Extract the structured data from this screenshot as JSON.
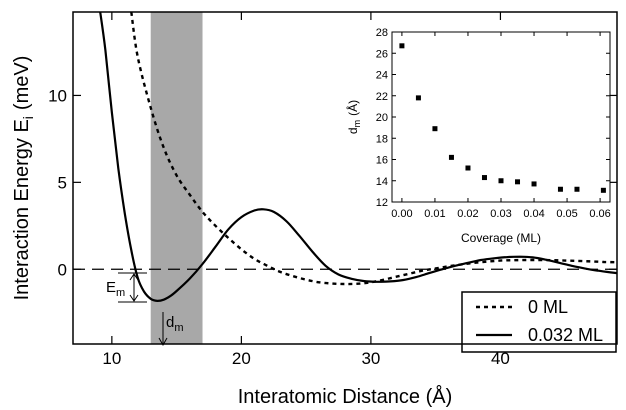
{
  "chart_data": [
    {
      "type": "line",
      "xlabel": "Interatomic Distance (Å)",
      "ylabel": "Interaction Energy E",
      "ylabel_subscript": "i",
      "ylabel_unit": "(meV)",
      "xlim": [
        7,
        49
      ],
      "ylim": [
        -4.3,
        14.8
      ],
      "x_ticks": [
        10,
        20,
        30,
        40
      ],
      "y_ticks": [
        0,
        5,
        10
      ],
      "legend_position": "bottom-right",
      "series": [
        {
          "name": "0 ML",
          "style": "dashed",
          "x": [
            11.5,
            12,
            13,
            14,
            15,
            16,
            17,
            18,
            19,
            20,
            21,
            22,
            23,
            24,
            25,
            26,
            27,
            28,
            29,
            30,
            31,
            32,
            33,
            34,
            35,
            36,
            37,
            38,
            39,
            40,
            41,
            42,
            43,
            44,
            45,
            46,
            47,
            48,
            49
          ],
          "y": [
            14.8,
            12.2,
            9.3,
            7.0,
            5.4,
            4.3,
            3.3,
            2.5,
            1.8,
            1.15,
            0.6,
            0.2,
            -0.15,
            -0.4,
            -0.6,
            -0.75,
            -0.82,
            -0.85,
            -0.83,
            -0.75,
            -0.6,
            -0.42,
            -0.25,
            -0.08,
            0.05,
            0.17,
            0.28,
            0.37,
            0.44,
            0.5,
            0.52,
            0.53,
            0.53,
            0.52,
            0.5,
            0.48,
            0.45,
            0.42,
            0.4
          ]
        },
        {
          "name": "0.032 ML",
          "style": "solid",
          "x": [
            9.1,
            9.5,
            10,
            10.5,
            11,
            11.5,
            12,
            12.5,
            13,
            13.5,
            14,
            14.5,
            15,
            16,
            17,
            18,
            19,
            20,
            21,
            21.7,
            22.5,
            23.5,
            24.5,
            25.5,
            26.5,
            27.5,
            28.5,
            29.5,
            30.5,
            31.5,
            32.5,
            33.5,
            34.5,
            35.5,
            36.5,
            37.5,
            38.5,
            39.5,
            40.5,
            41.5,
            42.5,
            43.5,
            44.5,
            45.5,
            46.5,
            47.5,
            48.5,
            49
          ],
          "y": [
            14.8,
            12.6,
            9.0,
            5.8,
            3.2,
            1.1,
            -0.5,
            -1.3,
            -1.7,
            -1.82,
            -1.75,
            -1.55,
            -1.25,
            -0.55,
            0.3,
            1.3,
            2.3,
            3.0,
            3.38,
            3.45,
            3.3,
            2.75,
            1.9,
            1.0,
            0.2,
            -0.3,
            -0.55,
            -0.68,
            -0.72,
            -0.7,
            -0.62,
            -0.45,
            -0.22,
            0.0,
            0.2,
            0.37,
            0.53,
            0.63,
            0.7,
            0.72,
            0.68,
            0.55,
            0.38,
            0.2,
            0.05,
            -0.08,
            -0.18,
            -0.22
          ]
        }
      ],
      "shaded_band": {
        "x": [
          13,
          17
        ]
      },
      "zero_line": true,
      "annotations": [
        {
          "text": "E",
          "subscript": "m"
        },
        {
          "text": "d",
          "subscript": "m"
        }
      ]
    },
    {
      "type": "scatter",
      "xlabel": "Coverage (ML)",
      "ylabel": "d",
      "ylabel_subscript": "m",
      "ylabel_unit": "(Å)",
      "xlim": [
        -0.003,
        0.063
      ],
      "ylim": [
        12,
        28
      ],
      "x_ticks": [
        0.0,
        0.01,
        0.02,
        0.03,
        0.04,
        0.05,
        0.06
      ],
      "x_tick_labels": [
        "0.00",
        "0.01",
        "0.02",
        "0.03",
        "0.04",
        "0.05",
        "0.06"
      ],
      "y_ticks": [
        12,
        14,
        16,
        18,
        20,
        22,
        24,
        26,
        28
      ],
      "points": {
        "x": [
          0.0,
          0.005,
          0.01,
          0.015,
          0.02,
          0.025,
          0.03,
          0.035,
          0.04,
          0.048,
          0.053,
          0.061
        ],
        "y": [
          26.7,
          21.8,
          18.9,
          16.2,
          15.2,
          14.3,
          14.0,
          13.9,
          13.7,
          13.2,
          13.2,
          13.1
        ]
      }
    }
  ]
}
